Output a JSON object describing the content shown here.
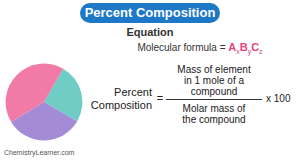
{
  "header": {
    "title": "Percent Composition",
    "subtitle": "Equation"
  },
  "molecular_formula": {
    "label": "Molecular formula",
    "equals": "=",
    "terms": [
      {
        "symbol": "A",
        "subscript": "x"
      },
      {
        "symbol": "B",
        "subscript": "y"
      },
      {
        "symbol": "C",
        "subscript": "z"
      }
    ]
  },
  "equation": {
    "left": [
      "Percent",
      "Composition"
    ],
    "equals": "=",
    "numerator": [
      "Mass of element",
      "in 1 mole of a",
      "compound"
    ],
    "denominator": [
      "Molar mass of",
      "the compound"
    ],
    "multiplier": "x 100"
  },
  "chart_data": {
    "type": "pie",
    "values": [
      25,
      33,
      42
    ],
    "colors": [
      "#6fcdc6",
      "#a48bd6",
      "#f27aa6"
    ]
  },
  "footer": "ChemistryLearner.com"
}
